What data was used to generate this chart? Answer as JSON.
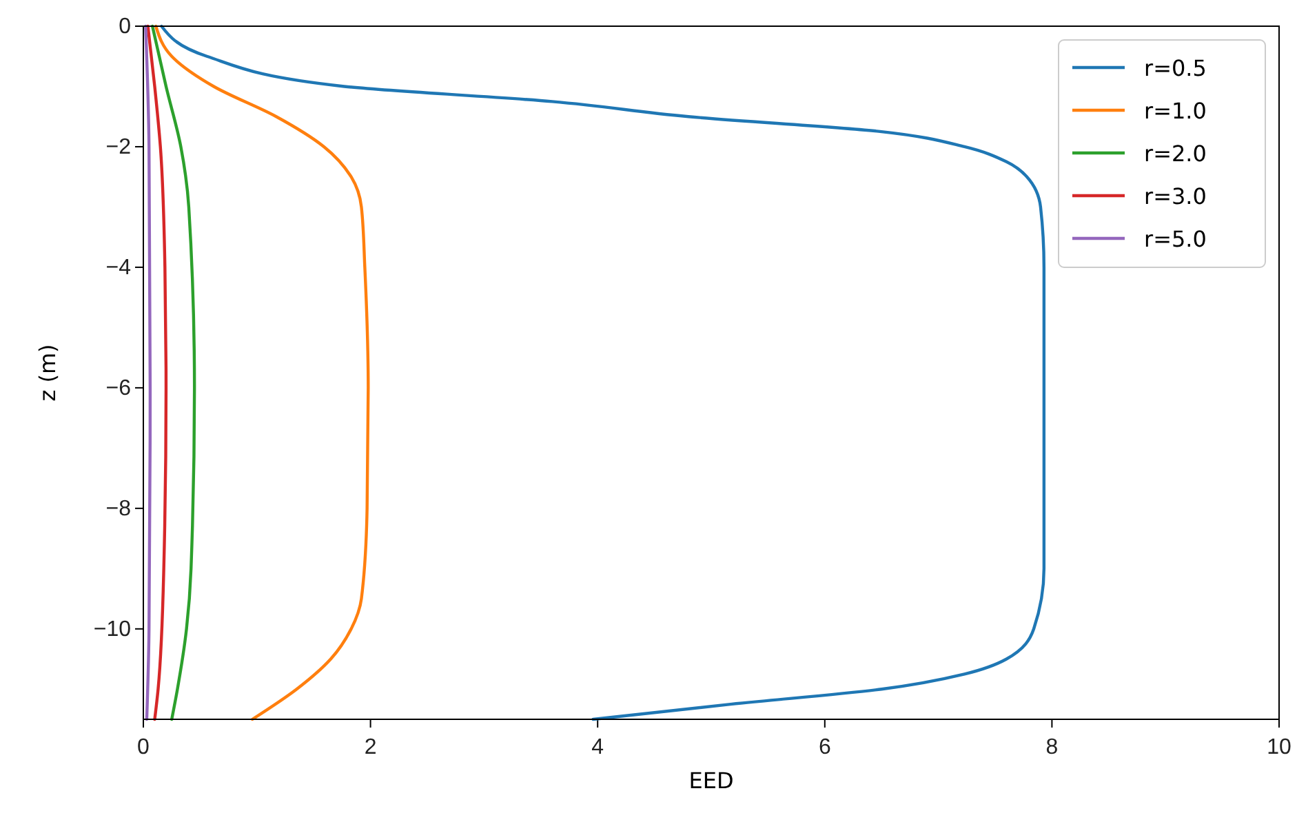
{
  "chart_data": {
    "type": "line",
    "xlabel": "EED",
    "ylabel": "z (m)",
    "xlim": [
      0,
      10
    ],
    "ylim": [
      -11.5,
      0
    ],
    "xticks": [
      0,
      2,
      4,
      6,
      8,
      10
    ],
    "yticks": [
      {
        "value": -10,
        "label": "−10"
      },
      {
        "value": -8,
        "label": "−8"
      },
      {
        "value": -6,
        "label": "−6"
      },
      {
        "value": -4,
        "label": "−4"
      },
      {
        "value": -2,
        "label": "−2"
      },
      0
    ],
    "legend": "top right",
    "grid": false,
    "series": [
      {
        "name": "r=0.5",
        "color": "#1f77b4",
        "x": [
          0.16,
          0.56,
          1.77,
          3.6,
          4.8,
          6.5,
          7.23,
          7.6,
          7.78,
          7.9,
          7.93,
          7.93,
          7.93,
          7.84,
          7.6,
          7.23,
          6.5,
          5.17,
          3.96
        ],
        "values": [
          0,
          -0.5,
          -1,
          -1.25,
          -1.5,
          -1.75,
          -2,
          -2.25,
          -2.5,
          -3,
          -4,
          -6,
          -9,
          -10,
          -10.5,
          -10.75,
          -11,
          -11.25,
          -11.5
        ]
      },
      {
        "name": "r=1.0",
        "color": "#ff7f0e",
        "x": [
          0.11,
          0.25,
          0.62,
          1.17,
          1.59,
          1.83,
          1.92,
          1.95,
          1.98,
          1.97,
          1.92,
          1.83,
          1.65,
          1.35,
          0.96
        ],
        "values": [
          0,
          -0.5,
          -1,
          -1.5,
          -2,
          -2.5,
          -3,
          -4,
          -6,
          -8,
          -9.5,
          -10,
          -10.5,
          -11,
          -11.5
        ]
      },
      {
        "name": "r=2.0",
        "color": "#2ca02c",
        "x": [
          0.08,
          0.2,
          0.33,
          0.4,
          0.45,
          0.42,
          0.38,
          0.3,
          0.25
        ],
        "values": [
          0,
          -1,
          -2,
          -3,
          -6,
          -9,
          -10,
          -11,
          -11.5
        ]
      },
      {
        "name": "r=3.0",
        "color": "#d62728",
        "x": [
          0.04,
          0.1,
          0.15,
          0.19,
          0.2,
          0.18,
          0.13,
          0.1
        ],
        "values": [
          0,
          -1,
          -2,
          -4,
          -6,
          -9,
          -11,
          -11.5
        ]
      },
      {
        "name": "r=5.0",
        "color": "#9467bd",
        "x": [
          0.02,
          0.05,
          0.06,
          0.05,
          0.03
        ],
        "values": [
          0,
          -2,
          -6,
          -10,
          -11.5
        ]
      }
    ]
  }
}
